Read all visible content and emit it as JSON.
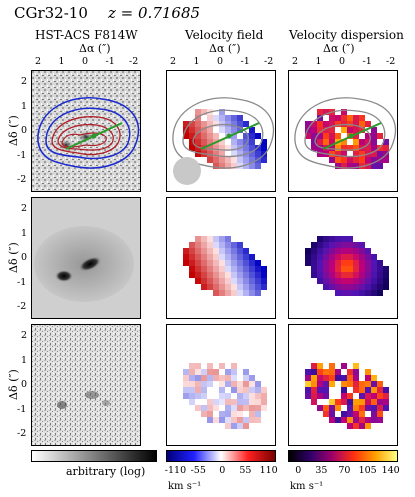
{
  "header": {
    "object": "CGr32-10",
    "redshift": "z = 0.71685"
  },
  "columns": [
    {
      "title": "HST-ACS F814W"
    },
    {
      "title": "Velocity field"
    },
    {
      "title": "Velocity dispersion"
    }
  ],
  "axes": {
    "x_label": "Δα (″)",
    "y_label": "Δδ (″)",
    "x_ticks": [
      "2",
      "1",
      "0",
      "-1",
      "-2"
    ],
    "y_ticks": [
      "2",
      "1",
      "0",
      "-1",
      "-2"
    ]
  },
  "colorbars": [
    {
      "label": "arbitrary (log)",
      "ticks": [],
      "unit": ""
    },
    {
      "label": "",
      "ticks": [
        "-110",
        "-55",
        "0",
        "55",
        "110"
      ],
      "unit": "km s⁻¹"
    },
    {
      "label": "",
      "ticks": [
        "0",
        "35",
        "70",
        "105",
        "140"
      ],
      "unit": "km s⁻¹"
    }
  ],
  "colors": {
    "contour_inner": "#b0202a",
    "contour_outer": "#1a2ad0",
    "kinematic_axis": "#2a9a2a",
    "velocity_positive": "#cc1111",
    "velocity_negative": "#1010cc",
    "dispersion_high": "#ffd030",
    "dispersion_low": "#10005a"
  }
}
